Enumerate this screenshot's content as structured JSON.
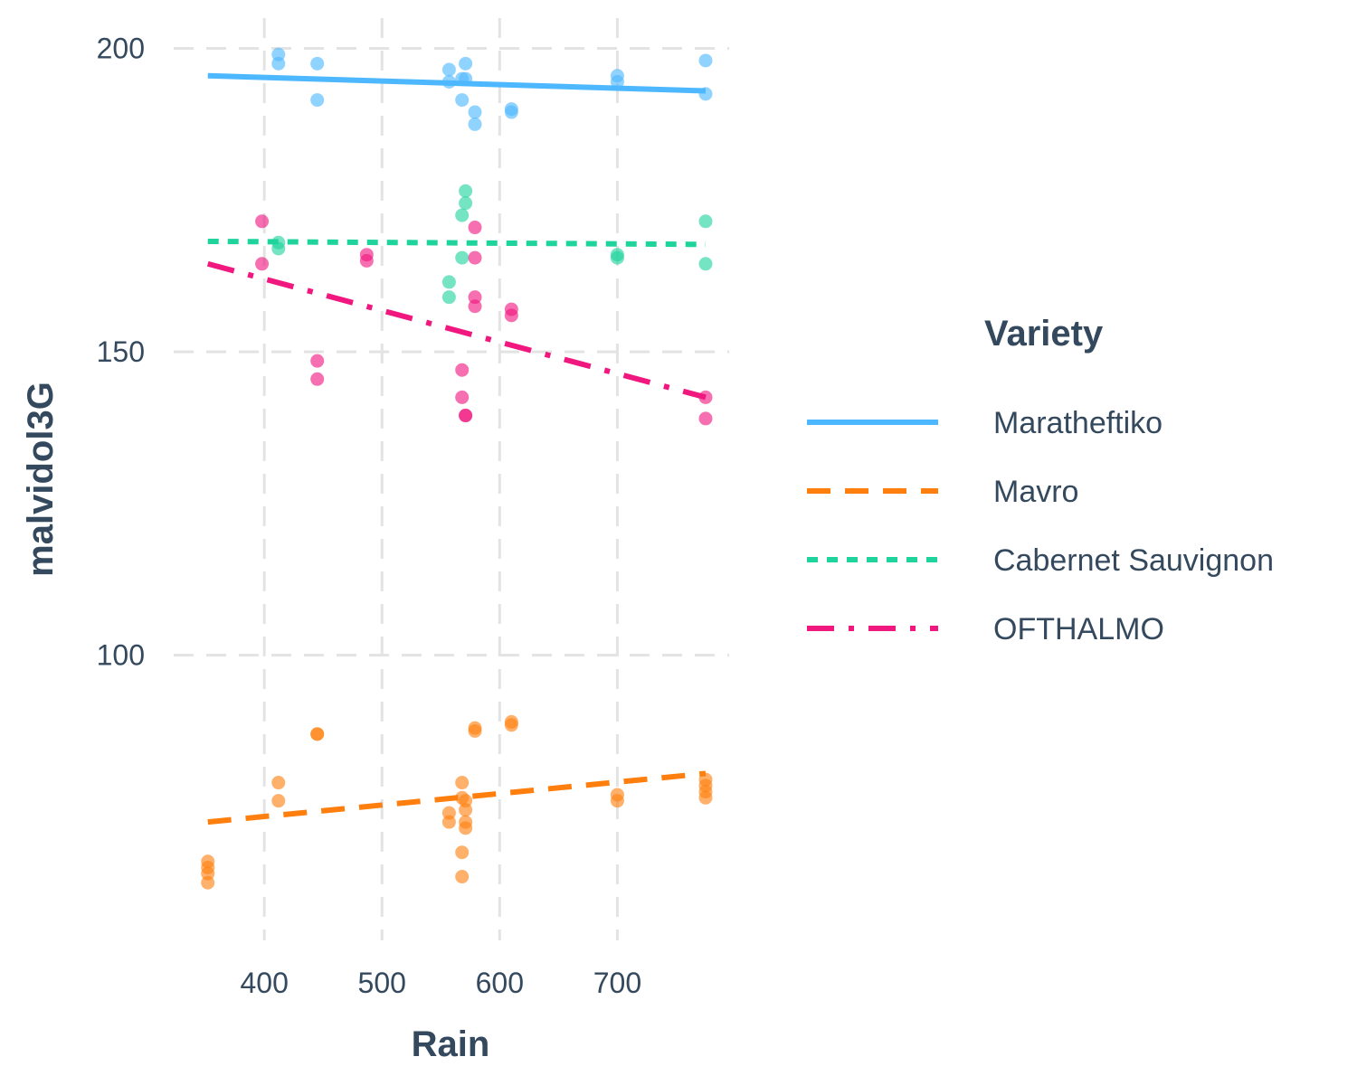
{
  "chart_data": {
    "type": "scatter",
    "title": "",
    "xlabel": "Rain",
    "ylabel": "malvidol3G",
    "xlim": [
      323,
      795
    ],
    "ylim": [
      53,
      205
    ],
    "x_ticks": [
      400,
      500,
      600,
      700
    ],
    "y_ticks": [
      100,
      150,
      200
    ],
    "grid": true,
    "legend": {
      "title": "Variety",
      "placement": "right"
    },
    "series": [
      {
        "name": "Maratheftiko",
        "color": "#4db8ff",
        "line_style": "solid",
        "fit": {
          "x": [
            352,
            775
          ],
          "y": [
            195.5,
            193.0
          ]
        },
        "points": [
          {
            "x": 412,
            "y": 199.0
          },
          {
            "x": 412,
            "y": 197.5
          },
          {
            "x": 445,
            "y": 197.5
          },
          {
            "x": 445,
            "y": 191.5
          },
          {
            "x": 557,
            "y": 196.5
          },
          {
            "x": 557,
            "y": 194.5
          },
          {
            "x": 568,
            "y": 195.0
          },
          {
            "x": 571,
            "y": 197.5
          },
          {
            "x": 571,
            "y": 195.0
          },
          {
            "x": 568,
            "y": 191.5
          },
          {
            "x": 579,
            "y": 189.5
          },
          {
            "x": 579,
            "y": 187.5
          },
          {
            "x": 610,
            "y": 190.0
          },
          {
            "x": 610,
            "y": 189.5
          },
          {
            "x": 700,
            "y": 195.5
          },
          {
            "x": 700,
            "y": 194.5
          },
          {
            "x": 775,
            "y": 198.0
          },
          {
            "x": 775,
            "y": 192.5
          }
        ]
      },
      {
        "name": "Mavro",
        "color": "#ff7f0e",
        "line_style": "dashed",
        "fit": {
          "x": [
            352,
            775
          ],
          "y": [
            72.5,
            80.5
          ]
        },
        "points": [
          {
            "x": 352,
            "y": 66.0
          },
          {
            "x": 352,
            "y": 65.0
          },
          {
            "x": 352,
            "y": 64.0
          },
          {
            "x": 352,
            "y": 62.5
          },
          {
            "x": 412,
            "y": 79.0
          },
          {
            "x": 412,
            "y": 76.0
          },
          {
            "x": 445,
            "y": 87.0
          },
          {
            "x": 445,
            "y": 87.0
          },
          {
            "x": 557,
            "y": 74.0
          },
          {
            "x": 557,
            "y": 72.5
          },
          {
            "x": 568,
            "y": 79.0
          },
          {
            "x": 568,
            "y": 76.5
          },
          {
            "x": 571,
            "y": 76.0
          },
          {
            "x": 571,
            "y": 74.5
          },
          {
            "x": 571,
            "y": 72.5
          },
          {
            "x": 571,
            "y": 71.5
          },
          {
            "x": 568,
            "y": 67.5
          },
          {
            "x": 568,
            "y": 63.5
          },
          {
            "x": 579,
            "y": 88.0
          },
          {
            "x": 579,
            "y": 87.5
          },
          {
            "x": 610,
            "y": 89.0
          },
          {
            "x": 610,
            "y": 88.5
          },
          {
            "x": 700,
            "y": 77.0
          },
          {
            "x": 700,
            "y": 76.0
          },
          {
            "x": 775,
            "y": 79.5
          },
          {
            "x": 775,
            "y": 78.5
          },
          {
            "x": 775,
            "y": 77.5
          },
          {
            "x": 775,
            "y": 76.5
          }
        ]
      },
      {
        "name": "Cabernet Sauvignon",
        "color": "#1fd39c",
        "line_style": "dotted",
        "fit": {
          "x": [
            352,
            775
          ],
          "y": [
            168.2,
            167.7
          ]
        },
        "points": [
          {
            "x": 412,
            "y": 168.0
          },
          {
            "x": 412,
            "y": 167.0
          },
          {
            "x": 557,
            "y": 161.5
          },
          {
            "x": 557,
            "y": 159.0
          },
          {
            "x": 568,
            "y": 172.5
          },
          {
            "x": 571,
            "y": 176.5
          },
          {
            "x": 571,
            "y": 174.5
          },
          {
            "x": 568,
            "y": 165.5
          },
          {
            "x": 700,
            "y": 166.0
          },
          {
            "x": 700,
            "y": 165.5
          },
          {
            "x": 775,
            "y": 171.5
          },
          {
            "x": 775,
            "y": 164.5
          }
        ]
      },
      {
        "name": "OFTHALMO",
        "color": "#f0177f",
        "line_style": "dotdash",
        "fit": {
          "x": [
            352,
            775
          ],
          "y": [
            164.5,
            142.5
          ]
        },
        "points": [
          {
            "x": 398,
            "y": 171.5
          },
          {
            "x": 398,
            "y": 164.5
          },
          {
            "x": 445,
            "y": 148.5
          },
          {
            "x": 445,
            "y": 145.5
          },
          {
            "x": 487,
            "y": 166.0
          },
          {
            "x": 487,
            "y": 165.0
          },
          {
            "x": 568,
            "y": 147.0
          },
          {
            "x": 568,
            "y": 142.5
          },
          {
            "x": 571,
            "y": 139.5
          },
          {
            "x": 571,
            "y": 139.5
          },
          {
            "x": 579,
            "y": 170.5
          },
          {
            "x": 579,
            "y": 165.5
          },
          {
            "x": 579,
            "y": 159.0
          },
          {
            "x": 579,
            "y": 157.5
          },
          {
            "x": 610,
            "y": 157.0
          },
          {
            "x": 610,
            "y": 156.0
          },
          {
            "x": 775,
            "y": 142.5
          },
          {
            "x": 775,
            "y": 139.0
          }
        ]
      }
    ]
  }
}
